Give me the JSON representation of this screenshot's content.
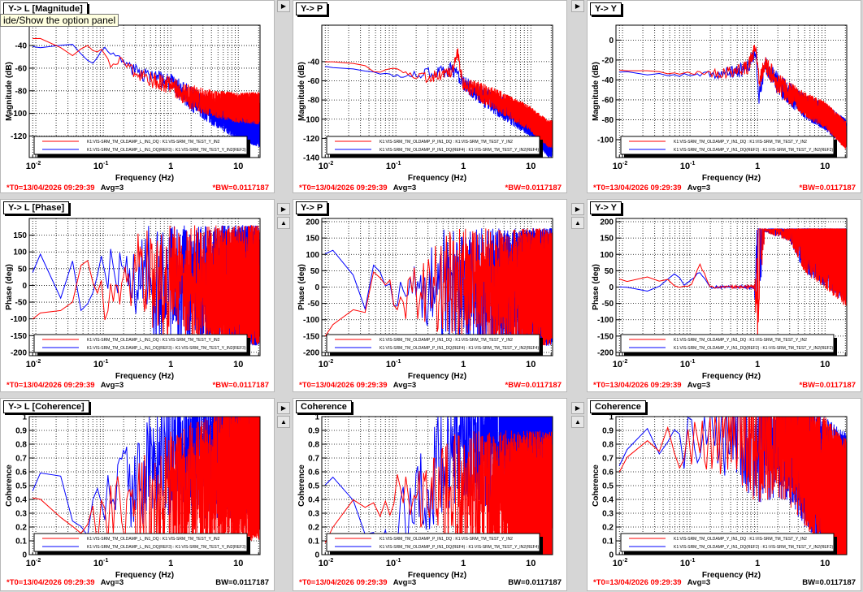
{
  "tooltip": "ide/Show the option panel",
  "colors": {
    "series_current": "#ff0000",
    "series_reference": "#0000ff",
    "background": "#d6d6d6"
  },
  "footer_common": {
    "t0": "*T0=13/04/2026 09:29:39",
    "avg": "Avg=3"
  },
  "xaxis": {
    "label": "Frequency (Hz)",
    "ticks": [
      {
        "v": 0.01,
        "base": "10",
        "exp": "-2"
      },
      {
        "v": 0.1,
        "base": "10",
        "exp": "-1"
      },
      {
        "v": 1,
        "base": "1",
        "exp": ""
      },
      {
        "v": 10,
        "base": "10",
        "exp": ""
      }
    ],
    "range": [
      0.008,
      21
    ],
    "scale": "log"
  },
  "panels": [
    {
      "title": "Y-> L [Magnitude]",
      "ylabel": "Magnitude (dB)",
      "bw": "*BW=0.0117187",
      "bw_red": true,
      "kind": "mag",
      "ylim": [
        -139,
        -22
      ],
      "yticks": [
        -120,
        -100,
        -80,
        -60,
        -40
      ],
      "legend": [
        "K1:VIS-SRM_TM_OLDAMP_L_IN1_DQ : K1:VIS-SRM_TM_TEST_Y_IN2",
        "K1:VIS-SRM_TM_OLDAMP_L_IN1_DQ(REF3) : K1:VIS-SRM_TM_TEST_Y_IN2(REF3)"
      ],
      "chart_data": {
        "type": "line",
        "series": [
          {
            "color": "#0000ff",
            "x": [
              0.009,
              0.02,
              0.035,
              0.05,
              0.07,
              0.1,
              0.15,
              0.3,
              1,
              3,
              10,
              20
            ],
            "y": [
              -41,
              -40,
              -37,
              -50,
              -55,
              -40,
              -48,
              -60,
              -70,
              -90,
              -105,
              -110
            ]
          },
          {
            "color": "#ff0000",
            "x": [
              0.009,
              0.02,
              0.03,
              0.04,
              0.055,
              0.07,
              0.1,
              0.13,
              0.2,
              0.3,
              0.5,
              1,
              1.5,
              3,
              10,
              20
            ],
            "y": [
              -33,
              -35,
              -50,
              -48,
              -37,
              -45,
              -42,
              -57,
              -50,
              -62,
              -68,
              -72,
              -78,
              -85,
              -90,
              -90
            ]
          }
        ]
      }
    },
    {
      "title": "Y-> P",
      "ylabel": "Magnitude (dB)",
      "bw": "*BW=0.0117187",
      "bw_red": true,
      "kind": "mag",
      "ylim": [
        -140,
        -2
      ],
      "yticks": [
        -140,
        -120,
        -100,
        -80,
        -60,
        -40
      ],
      "legend": [
        "K1:VIS-SRM_TM_OLDAMP_P_IN1_DQ : K1:VIS-SRM_TM_TEST_Y_IN2",
        "K1:VIS-SRM_TM_OLDAMP_P_IN1_DQ(REF4) : K1:VIS-SRM_TM_TEST_Y_IN2(REF4)"
      ],
      "chart_data": {
        "type": "line",
        "series": [
          {
            "color": "#0000ff",
            "x": [
              0.009,
              0.03,
              0.05,
              0.1,
              0.3,
              0.7,
              1,
              3,
              10,
              18
            ],
            "y": [
              -45,
              -48,
              -50,
              -55,
              -50,
              -45,
              -60,
              -80,
              -100,
              -120
            ]
          },
          {
            "color": "#ff0000",
            "x": [
              0.009,
              0.03,
              0.05,
              0.1,
              0.2,
              0.5,
              0.7,
              0.8,
              1,
              3,
              10,
              18
            ],
            "y": [
              -40,
              -42,
              -50,
              -45,
              -55,
              -52,
              -45,
              -25,
              -60,
              -75,
              -95,
              -110
            ]
          }
        ]
      }
    },
    {
      "title": "Y-> Y",
      "ylabel": "Magnitude (dB)",
      "bw": "*BW=0.0117187",
      "bw_red": true,
      "kind": "mag",
      "ylim": [
        -118,
        15
      ],
      "yticks": [
        -100,
        -80,
        -60,
        -40,
        -20,
        0
      ],
      "legend": [
        "K1:VIS-SRM_TM_OLDAMP_Y_IN1_DQ : K1:VIS-SRM_TM_TEST_Y_IN2",
        "K1:VIS-SRM_TM_OLDAMP_Y_IN1_DQ(REF2) : K1:VIS-SRM_TM_TEST_Y_IN2(REF2)"
      ],
      "chart_data": {
        "type": "line",
        "series": [
          {
            "color": "#0000ff",
            "x": [
              0.009,
              0.1,
              0.3,
              0.7,
              0.95,
              1.05,
              1.3,
              2,
              5,
              10,
              20
            ],
            "y": [
              -32,
              -35,
              -32,
              -26,
              -8,
              -55,
              -20,
              -40,
              -62,
              -72,
              -88
            ]
          },
          {
            "color": "#ff0000",
            "x": [
              0.009,
              0.1,
              0.3,
              0.7,
              0.95,
              1.05,
              1.3,
              2,
              5,
              10,
              20
            ],
            "y": [
              -30,
              -33,
              -30,
              -25,
              -5,
              -40,
              -20,
              -40,
              -60,
              -70,
              -90
            ]
          }
        ]
      }
    },
    {
      "title": "Y-> L [Phase]",
      "ylabel": "Phase (deg)",
      "bw": "*BW=0.0117187",
      "bw_red": true,
      "kind": "phase",
      "ylim": [
        -210,
        200
      ],
      "yticks": [
        -200,
        -150,
        -100,
        -50,
        0,
        50,
        100,
        150
      ],
      "legend": [
        "K1:VIS-SRM_TM_OLDAMP_L_IN1_DQ : K1:VIS-SRM_TM_TEST_Y_IN2",
        "K1:VIS-SRM_TM_OLDAMP_L_IN1_DQ(REF3) : K1:VIS-SRM_TM_TEST_Y_IN2(REF3)"
      ],
      "chart_data": {
        "type": "line",
        "series": [
          {
            "color": "#0000ff",
            "x": [
              0.009,
              0.015,
              0.02,
              0.03,
              0.05,
              0.1,
              0.3,
              1,
              20
            ],
            "y": [
              40,
              140,
              -150,
              150,
              -100,
              50,
              0,
              170,
              170
            ]
          },
          {
            "color": "#ff0000",
            "x": [
              0.009,
              0.02,
              0.03,
              0.05,
              0.1,
              0.3,
              1,
              20
            ],
            "y": [
              -100,
              -50,
              -100,
              100,
              -50,
              50,
              0,
              0
            ]
          }
        ]
      }
    },
    {
      "title": "Y-> P",
      "ylabel": "Phase (deg)",
      "bw": "*BW=0.0117187",
      "bw_red": true,
      "kind": "phase",
      "ylim": [
        -210,
        210
      ],
      "yticks": [
        -200,
        -150,
        -100,
        -50,
        0,
        50,
        100,
        150,
        200
      ],
      "legend": [
        "K1:VIS-SRM_TM_OLDAMP_P_IN1_DQ : K1:VIS-SRM_TM_TEST_Y_IN2",
        "K1:VIS-SRM_TM_OLDAMP_P_IN1_DQ(REF4) : K1:VIS-SRM_TM_TEST_Y_IN2(REF4)"
      ],
      "chart_data": {
        "type": "line",
        "series": [
          {
            "color": "#0000ff",
            "x": [
              0.009,
              0.02,
              0.03,
              0.05,
              0.1,
              0.3,
              0.8,
              20
            ],
            "y": [
              100,
              150,
              -150,
              100,
              -50,
              0,
              170,
              170
            ]
          },
          {
            "color": "#ff0000",
            "x": [
              0.009,
              0.02,
              0.03,
              0.05,
              0.1,
              0.3,
              0.8,
              20
            ],
            "y": [
              -150,
              -50,
              -120,
              50,
              -50,
              0,
              0,
              0
            ]
          }
        ]
      }
    },
    {
      "title": "Y-> Y",
      "ylabel": "Phase (deg)",
      "bw": "*BW=0.0117187",
      "bw_red": true,
      "kind": "phase",
      "ylim": [
        -210,
        210
      ],
      "yticks": [
        -200,
        -150,
        -100,
        -50,
        0,
        50,
        100,
        150,
        200
      ],
      "legend": [
        "K1:VIS-SRM_TM_OLDAMP_Y_IN1_DQ : K1:VIS-SRM_TM_TEST_Y_IN2",
        "K1:VIS-SRM_TM_OLDAMP_Y_IN1_DQ(REF2) : K1:VIS-SRM_TM_TEST_Y_IN2(REF2)"
      ],
      "chart_data": {
        "type": "line",
        "series": [
          {
            "color": "#0000ff",
            "x": [
              0.009,
              0.02,
              0.026,
              0.04,
              0.063,
              0.08,
              0.14,
              0.2,
              0.95,
              1.05,
              2,
              10,
              20
            ],
            "y": [
              0,
              -3,
              -18,
              12,
              48,
              5,
              45,
              0,
              0,
              175,
              172,
              160,
              150
            ]
          },
          {
            "color": "#ff0000",
            "x": [
              0.009,
              0.016,
              0.026,
              0.04,
              0.05,
              0.06,
              0.1,
              0.14,
              0.2,
              0.95,
              1.05,
              2,
              10,
              20
            ],
            "y": [
              25,
              8,
              37,
              8,
              28,
              0,
              0,
              70,
              0,
              0,
              175,
              172,
              155,
              140
            ]
          }
        ]
      }
    },
    {
      "title": "Y-> L [Coherence]",
      "ylabel": "Coherence",
      "bw": "BW=0.0117187",
      "bw_red": false,
      "kind": "coh",
      "ylim": [
        0,
        1
      ],
      "yticks": [
        0,
        0.1,
        0.2,
        0.3,
        0.4,
        0.5,
        0.6,
        0.7,
        0.8,
        0.9,
        1
      ],
      "legend": [
        "K1:VIS-SRM_TM_OLDAMP_L_IN1_DQ : K1:VIS-SRM_TM_TEST_Y_IN2",
        "K1:VIS-SRM_TM_OLDAMP_L_IN1_DQ(REF3) : K1:VIS-SRM_TM_TEST_Y_IN2(REF3)"
      ],
      "chart_data": {
        "type": "line",
        "series": [
          {
            "color": "#0000ff",
            "x": [
              0.009,
              0.016,
              0.035,
              0.05,
              0.1,
              0.3,
              1,
              3,
              10,
              18
            ],
            "y": [
              0.48,
              0.78,
              0.2,
              0.2,
              0.4,
              0.6,
              0.9,
              0.85,
              0.85,
              0.9
            ]
          },
          {
            "color": "#ff0000",
            "x": [
              0.009,
              0.02,
              0.03,
              0.05,
              0.1,
              0.3,
              1,
              3,
              10,
              18
            ],
            "y": [
              0.43,
              0.3,
              0.1,
              0.3,
              0.3,
              0.4,
              0.5,
              0.6,
              0.7,
              0.7
            ]
          }
        ]
      }
    },
    {
      "title": "Coherence",
      "ylabel": "Coherence",
      "bw": "BW=0.0117187",
      "bw_red": false,
      "kind": "coh",
      "ylim": [
        0,
        1
      ],
      "yticks": [
        0,
        0.1,
        0.2,
        0.3,
        0.4,
        0.5,
        0.6,
        0.7,
        0.8,
        0.9,
        1
      ],
      "legend": [
        "K1:VIS-SRM_TM_OLDAMP_P_IN1_DQ : K1:VIS-SRM_TM_TEST_Y_IN2",
        "K1:VIS-SRM_TM_OLDAMP_P_IN1_DQ(REF4) : K1:VIS-SRM_TM_TEST_Y_IN2(REF4)"
      ],
      "chart_data": {
        "type": "line",
        "series": [
          {
            "color": "#0000ff",
            "x": [
              0.009,
              0.015,
              0.03,
              0.05,
              0.1,
              0.3,
              1,
              3,
              10,
              18
            ],
            "y": [
              0.5,
              0.65,
              0.2,
              0.1,
              0.3,
              0.6,
              0.9,
              0.9,
              0.85,
              0.85
            ]
          },
          {
            "color": "#ff0000",
            "x": [
              0.009,
              0.02,
              0.03,
              0.05,
              0.1,
              0.3,
              1,
              3,
              10,
              18
            ],
            "y": [
              0.1,
              0.3,
              0.4,
              0.3,
              0.4,
              0.5,
              0.5,
              0.5,
              0.5,
              0.5
            ]
          }
        ]
      }
    },
    {
      "title": "Coherence",
      "ylabel": "Coherence",
      "bw": "BW=0.0117187",
      "bw_red": false,
      "kind": "coh",
      "ylim": [
        0,
        1
      ],
      "yticks": [
        0,
        0.1,
        0.2,
        0.3,
        0.4,
        0.5,
        0.6,
        0.7,
        0.8,
        0.9,
        1
      ],
      "legend": [
        "K1:VIS-SRM_TM_OLDAMP_Y_IN1_DQ : K1:VIS-SRM_TM_TEST_Y_IN2",
        "K1:VIS-SRM_TM_OLDAMP_Y_IN1_DQ(REF2) : K1:VIS-SRM_TM_TEST_Y_IN2(REF2)"
      ],
      "chart_data": {
        "type": "line",
        "series": [
          {
            "color": "#0000ff",
            "x": [
              0.009,
              0.015,
              0.03,
              0.05,
              0.1,
              0.3,
              1,
              3,
              10,
              18
            ],
            "y": [
              0.65,
              0.92,
              0.85,
              0.8,
              0.9,
              0.98,
              0.98,
              0.95,
              0.6,
              0.5
            ]
          },
          {
            "color": "#ff0000",
            "x": [
              0.009,
              0.015,
              0.03,
              0.05,
              0.1,
              0.3,
              1,
              3,
              10,
              18
            ],
            "y": [
              0.62,
              0.8,
              0.9,
              0.8,
              0.85,
              0.97,
              0.98,
              0.95,
              0.6,
              0.45
            ]
          }
        ]
      }
    }
  ]
}
